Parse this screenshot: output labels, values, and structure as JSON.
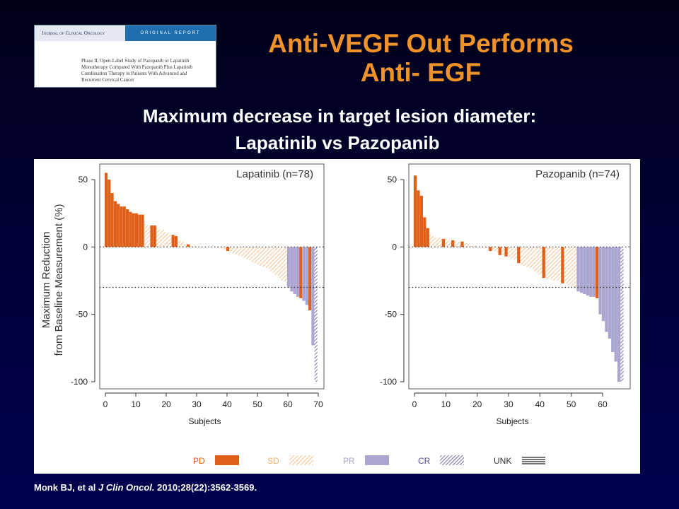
{
  "journal": {
    "name": "Journal of Clinical Oncology",
    "tag": "ORIGINAL REPORT",
    "article_lines": [
      "Phase II, Open-Label Study of Pazopanib or Lapatinib",
      "Monotherapy Compared With Pazopanib Plus Lapatinib",
      "Combination Therapy in Patients With Advanced and",
      "Recurrent Cervical Cancer"
    ]
  },
  "slide": {
    "title_line1": "Anti-VEGF Out Performs",
    "title_line2": "Anti- EGF",
    "subtitle_line1": "Maximum decrease in target lesion diameter:",
    "subtitle_line2": "Lapatinib vs Pazopanib"
  },
  "citation": {
    "authors": "Monk BJ, et al",
    "journal": "J Clin Oncol.",
    "ref": "2010;28(22):3562-3569."
  },
  "colors": {
    "PD": "#e0601a",
    "SD": "#f5b070",
    "PR": "#aaa6d0",
    "CR": "#5a4e96",
    "UNK": "#333333"
  },
  "chart_data": [
    {
      "type": "bar",
      "title": "Lapatinib (n=78)",
      "ylabel": "Maximum Reduction\nfrom Baseline Measurement (%)",
      "xlabel": "Subjects",
      "ylim": [
        -100,
        50
      ],
      "xlim": [
        0,
        70
      ],
      "yticks": [
        50,
        0,
        -50,
        -100
      ],
      "xticks": [
        0,
        10,
        20,
        30,
        40,
        50,
        60,
        70
      ],
      "reference_lines": [
        0,
        -30
      ],
      "bars": [
        {
          "x": 0,
          "y": 55,
          "c": "PD"
        },
        {
          "x": 1,
          "y": 50,
          "c": "PD"
        },
        {
          "x": 2,
          "y": 40,
          "c": "PD"
        },
        {
          "x": 3,
          "y": 34,
          "c": "PD"
        },
        {
          "x": 4,
          "y": 32,
          "c": "PD"
        },
        {
          "x": 5,
          "y": 30,
          "c": "PD"
        },
        {
          "x": 6,
          "y": 30,
          "c": "PD"
        },
        {
          "x": 7,
          "y": 28,
          "c": "PD"
        },
        {
          "x": 8,
          "y": 26,
          "c": "PD"
        },
        {
          "x": 9,
          "y": 25,
          "c": "PD"
        },
        {
          "x": 10,
          "y": 25,
          "c": "PD"
        },
        {
          "x": 11,
          "y": 24,
          "c": "PD"
        },
        {
          "x": 12,
          "y": 24,
          "c": "PD"
        },
        {
          "x": 13,
          "y": 17,
          "c": "SD"
        },
        {
          "x": 14,
          "y": 16,
          "c": "SD"
        },
        {
          "x": 15,
          "y": 16,
          "c": "PD"
        },
        {
          "x": 16,
          "y": 16,
          "c": "PD"
        },
        {
          "x": 17,
          "y": 14,
          "c": "SD"
        },
        {
          "x": 18,
          "y": 13,
          "c": "SD"
        },
        {
          "x": 19,
          "y": 13,
          "c": "SD"
        },
        {
          "x": 20,
          "y": 11,
          "c": "SD"
        },
        {
          "x": 21,
          "y": 9,
          "c": "SD"
        },
        {
          "x": 22,
          "y": 9,
          "c": "PD"
        },
        {
          "x": 23,
          "y": 8,
          "c": "PD"
        },
        {
          "x": 24,
          "y": 5,
          "c": "SD"
        },
        {
          "x": 25,
          "y": 4,
          "c": "SD"
        },
        {
          "x": 26,
          "y": 2,
          "c": "SD"
        },
        {
          "x": 27,
          "y": 2,
          "c": "PD"
        },
        {
          "x": 28,
          "y": 1,
          "c": "SD"
        },
        {
          "x": 29,
          "y": 1,
          "c": "SD"
        },
        {
          "x": 30,
          "y": 0.5,
          "c": "SD"
        },
        {
          "x": 31,
          "y": 0.3,
          "c": "SD"
        },
        {
          "x": 32,
          "y": 0,
          "c": "SD"
        },
        {
          "x": 33,
          "y": 0,
          "c": "SD"
        },
        {
          "x": 34,
          "y": 0,
          "c": "SD"
        },
        {
          "x": 35,
          "y": 0,
          "c": "SD"
        },
        {
          "x": 36,
          "y": 0,
          "c": "SD"
        },
        {
          "x": 37,
          "y": -1,
          "c": "SD"
        },
        {
          "x": 38,
          "y": -1,
          "c": "SD"
        },
        {
          "x": 39,
          "y": -2,
          "c": "SD"
        },
        {
          "x": 40,
          "y": -3,
          "c": "PD"
        },
        {
          "x": 41,
          "y": -4,
          "c": "SD"
        },
        {
          "x": 42,
          "y": -5,
          "c": "SD"
        },
        {
          "x": 43,
          "y": -6,
          "c": "SD"
        },
        {
          "x": 44,
          "y": -7,
          "c": "SD"
        },
        {
          "x": 45,
          "y": -8,
          "c": "SD"
        },
        {
          "x": 46,
          "y": -9,
          "c": "SD"
        },
        {
          "x": 47,
          "y": -10,
          "c": "SD"
        },
        {
          "x": 48,
          "y": -11,
          "c": "SD"
        },
        {
          "x": 49,
          "y": -12,
          "c": "SD"
        },
        {
          "x": 50,
          "y": -13,
          "c": "SD"
        },
        {
          "x": 51,
          "y": -14,
          "c": "SD"
        },
        {
          "x": 52,
          "y": -15,
          "c": "SD"
        },
        {
          "x": 53,
          "y": -16,
          "c": "SD"
        },
        {
          "x": 54,
          "y": -18,
          "c": "SD"
        },
        {
          "x": 55,
          "y": -19,
          "c": "SD"
        },
        {
          "x": 56,
          "y": -21,
          "c": "SD"
        },
        {
          "x": 57,
          "y": -23,
          "c": "SD"
        },
        {
          "x": 58,
          "y": -25,
          "c": "SD"
        },
        {
          "x": 59,
          "y": -27,
          "c": "SD"
        },
        {
          "x": 60,
          "y": -30,
          "c": "PR"
        },
        {
          "x": 61,
          "y": -33,
          "c": "PR"
        },
        {
          "x": 62,
          "y": -35,
          "c": "PR"
        },
        {
          "x": 63,
          "y": -37,
          "c": "PR"
        },
        {
          "x": 64,
          "y": -38,
          "c": "PD"
        },
        {
          "x": 65,
          "y": -40,
          "c": "PR"
        },
        {
          "x": 66,
          "y": -43,
          "c": "PR"
        },
        {
          "x": 67,
          "y": -47,
          "c": "PD"
        },
        {
          "x": 68,
          "y": -73,
          "c": "PR"
        },
        {
          "x": 69,
          "y": -100,
          "c": "CR"
        }
      ]
    },
    {
      "type": "bar",
      "title": "Pazopanib (n=74)",
      "ylabel": "",
      "xlabel": "Subjects",
      "ylim": [
        -100,
        50
      ],
      "xlim": [
        0,
        67
      ],
      "yticks": [
        50,
        0,
        -50,
        -100
      ],
      "xticks": [
        0,
        10,
        20,
        30,
        40,
        50,
        60
      ],
      "reference_lines": [
        0,
        -30
      ],
      "bars": [
        {
          "x": 0,
          "y": 53,
          "c": "PD"
        },
        {
          "x": 1,
          "y": 42,
          "c": "PD"
        },
        {
          "x": 2,
          "y": 38,
          "c": "PD"
        },
        {
          "x": 3,
          "y": 22,
          "c": "PD"
        },
        {
          "x": 4,
          "y": 14,
          "c": "PD"
        },
        {
          "x": 5,
          "y": 9,
          "c": "SD"
        },
        {
          "x": 6,
          "y": 8,
          "c": "SD"
        },
        {
          "x": 7,
          "y": 7,
          "c": "SD"
        },
        {
          "x": 8,
          "y": 7,
          "c": "SD"
        },
        {
          "x": 9,
          "y": 6,
          "c": "PD"
        },
        {
          "x": 10,
          "y": 6,
          "c": "SD"
        },
        {
          "x": 11,
          "y": 5,
          "c": "SD"
        },
        {
          "x": 12,
          "y": 5,
          "c": "PD"
        },
        {
          "x": 13,
          "y": 4,
          "c": "SD"
        },
        {
          "x": 14,
          "y": 4,
          "c": "SD"
        },
        {
          "x": 15,
          "y": 4,
          "c": "PD"
        },
        {
          "x": 16,
          "y": 3,
          "c": "SD"
        },
        {
          "x": 17,
          "y": 2,
          "c": "SD"
        },
        {
          "x": 18,
          "y": 1,
          "c": "SD"
        },
        {
          "x": 19,
          "y": 1,
          "c": "SD"
        },
        {
          "x": 20,
          "y": 0,
          "c": "SD"
        },
        {
          "x": 21,
          "y": 0,
          "c": "SD"
        },
        {
          "x": 22,
          "y": -1,
          "c": "SD"
        },
        {
          "x": 23,
          "y": -2,
          "c": "SD"
        },
        {
          "x": 24,
          "y": -3,
          "c": "PD"
        },
        {
          "x": 25,
          "y": -3,
          "c": "SD"
        },
        {
          "x": 26,
          "y": -4,
          "c": "SD"
        },
        {
          "x": 27,
          "y": -6,
          "c": "PD"
        },
        {
          "x": 28,
          "y": -6,
          "c": "SD"
        },
        {
          "x": 29,
          "y": -7,
          "c": "PD"
        },
        {
          "x": 30,
          "y": -8,
          "c": "SD"
        },
        {
          "x": 31,
          "y": -9,
          "c": "SD"
        },
        {
          "x": 32,
          "y": -10,
          "c": "SD"
        },
        {
          "x": 33,
          "y": -12,
          "c": "PD"
        },
        {
          "x": 34,
          "y": -13,
          "c": "SD"
        },
        {
          "x": 35,
          "y": -14,
          "c": "SD"
        },
        {
          "x": 36,
          "y": -15,
          "c": "SD"
        },
        {
          "x": 37,
          "y": -16,
          "c": "SD"
        },
        {
          "x": 38,
          "y": -18,
          "c": "SD"
        },
        {
          "x": 39,
          "y": -19,
          "c": "SD"
        },
        {
          "x": 40,
          "y": -21,
          "c": "SD"
        },
        {
          "x": 41,
          "y": -23,
          "c": "PD"
        },
        {
          "x": 42,
          "y": -24,
          "c": "SD"
        },
        {
          "x": 43,
          "y": -24,
          "c": "SD"
        },
        {
          "x": 44,
          "y": -25,
          "c": "SD"
        },
        {
          "x": 45,
          "y": -25,
          "c": "SD"
        },
        {
          "x": 46,
          "y": -26,
          "c": "SD"
        },
        {
          "x": 47,
          "y": -27,
          "c": "PD"
        },
        {
          "x": 48,
          "y": -27,
          "c": "SD"
        },
        {
          "x": 49,
          "y": -28,
          "c": "SD"
        },
        {
          "x": 50,
          "y": -29,
          "c": "SD"
        },
        {
          "x": 51,
          "y": -30,
          "c": "SD"
        },
        {
          "x": 52,
          "y": -33,
          "c": "PR"
        },
        {
          "x": 53,
          "y": -34,
          "c": "PR"
        },
        {
          "x": 54,
          "y": -35,
          "c": "PR"
        },
        {
          "x": 55,
          "y": -36,
          "c": "PR"
        },
        {
          "x": 56,
          "y": -37,
          "c": "PR"
        },
        {
          "x": 57,
          "y": -37,
          "c": "PR"
        },
        {
          "x": 58,
          "y": -38,
          "c": "PD"
        },
        {
          "x": 59,
          "y": -50,
          "c": "PR"
        },
        {
          "x": 60,
          "y": -55,
          "c": "PR"
        },
        {
          "x": 61,
          "y": -63,
          "c": "PR"
        },
        {
          "x": 62,
          "y": -68,
          "c": "PR"
        },
        {
          "x": 63,
          "y": -78,
          "c": "PR"
        },
        {
          "x": 64,
          "y": -85,
          "c": "PR"
        },
        {
          "x": 65,
          "y": -100,
          "c": "PR"
        },
        {
          "x": 66,
          "y": -100,
          "c": "CR"
        }
      ]
    }
  ],
  "legend": [
    {
      "key": "PD",
      "label": "PD"
    },
    {
      "key": "SD",
      "label": "SD"
    },
    {
      "key": "PR",
      "label": "PR"
    },
    {
      "key": "CR",
      "label": "CR"
    },
    {
      "key": "UNK",
      "label": "UNK"
    }
  ]
}
